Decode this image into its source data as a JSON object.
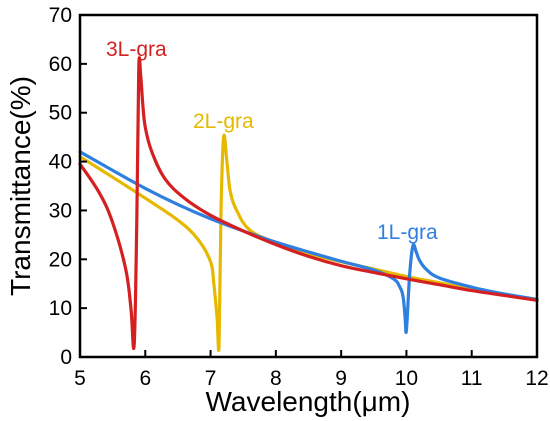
{
  "chart_data": {
    "type": "line",
    "title": "",
    "xlabel": "Wavelength(μm)",
    "ylabel": "Transmittance(%)",
    "xlim": [
      5,
      12
    ],
    "ylim": [
      0,
      70
    ],
    "xticks": [
      5,
      6,
      7,
      8,
      9,
      10,
      11,
      12
    ],
    "yticks": [
      0,
      10,
      20,
      30,
      40,
      50,
      60,
      70
    ],
    "grid": false,
    "legend": "none (series labeled directly on plot)",
    "series": [
      {
        "name": "1L-gra",
        "color": "#2F7FE0",
        "x": [
          5,
          5.5,
          6,
          6.5,
          7,
          7.5,
          8,
          8.5,
          9,
          9.5,
          9.8,
          9.9,
          9.95,
          9.98,
          10.0,
          10.05,
          10.1,
          10.15,
          10.2,
          10.3,
          10.5,
          11,
          11.5,
          12
        ],
        "y": [
          42,
          38.2,
          34.5,
          31.2,
          28.3,
          25.8,
          23.5,
          21.5,
          19.6,
          17.8,
          16.0,
          14.3,
          12.2,
          8.0,
          5.5,
          17.0,
          22.8,
          21.5,
          19.8,
          18.0,
          16.2,
          14.3,
          12.9,
          11.8
        ]
      },
      {
        "name": "2L-gra",
        "color": "#E6B800",
        "x": [
          5,
          5.5,
          6,
          6.5,
          6.8,
          7.0,
          7.05,
          7.1,
          7.13,
          7.16,
          7.2,
          7.25,
          7.3,
          7.4,
          7.6,
          8,
          8.5,
          9,
          9.5,
          10,
          10.5,
          11,
          11.5,
          12
        ],
        "y": [
          41,
          36.8,
          32.5,
          28.0,
          24.2,
          19.5,
          15.0,
          8.0,
          2.5,
          30.0,
          45.0,
          40.0,
          34.0,
          30.0,
          26.0,
          23.4,
          21.2,
          19.5,
          18.0,
          16.5,
          15.2,
          13.9,
          12.8,
          11.6
        ]
      },
      {
        "name": "3L-gra",
        "color": "#D42020",
        "x": [
          5,
          5.3,
          5.5,
          5.7,
          5.78,
          5.83,
          5.87,
          5.9,
          5.93,
          5.96,
          6.0,
          6.1,
          6.3,
          6.6,
          7,
          7.5,
          8,
          8.5,
          9,
          9.5,
          10,
          10.5,
          11,
          11.5,
          12
        ],
        "y": [
          39.5,
          33.5,
          27.5,
          18.0,
          10.0,
          2.5,
          28.0,
          59.0,
          57.5,
          52.0,
          47.0,
          42.0,
          36.5,
          32.5,
          29.0,
          25.8,
          23.0,
          20.6,
          18.7,
          17.3,
          16.0,
          14.8,
          13.6,
          12.6,
          11.6
        ]
      }
    ]
  },
  "labels": {
    "s1": "1L-gra",
    "s2": "2L-gra",
    "s3": "3L-gra"
  }
}
